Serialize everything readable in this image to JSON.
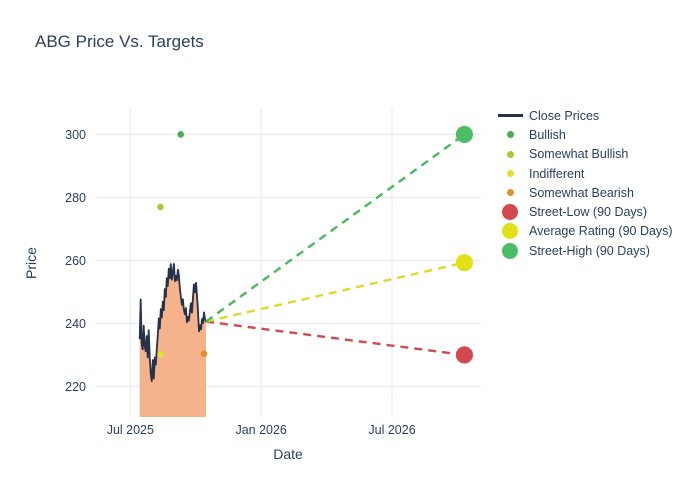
{
  "title": "ABG Price Vs. Targets",
  "colors": {
    "title_text": "#2a3f5f",
    "axis_text": "#2a3f5f",
    "gridline": "#e9eef6",
    "background": "#ffffff",
    "close_line": "#263247",
    "close_fill": "#f6b28b"
  },
  "legend": {
    "items": [
      {
        "label": "Close Prices",
        "marker": "line",
        "color": "#263247"
      },
      {
        "label": "Bullish",
        "marker": "dot-small",
        "color": "#4aad52"
      },
      {
        "label": "Somewhat Bullish",
        "marker": "dot-small",
        "color": "#a6c939"
      },
      {
        "label": "Indifferent",
        "marker": "dot-small",
        "color": "#e4df30"
      },
      {
        "label": "Somewhat Bearish",
        "marker": "dot-small",
        "color": "#df8f2d"
      },
      {
        "label": "Street-Low (90 Days)",
        "marker": "dot-large",
        "color": "#d4494f"
      },
      {
        "label": "Average Rating (90 Days)",
        "marker": "dot-large",
        "color": "#e2e118"
      },
      {
        "label": "Street-High (90 Days)",
        "marker": "dot-large",
        "color": "#4dbd65"
      }
    ]
  },
  "chart_data": {
    "type": "line",
    "title": "ABG Price Vs. Targets",
    "xlabel": "Date",
    "ylabel": "Price",
    "grid": true,
    "legend_position": "right",
    "x_tick_labels": [
      "Jul 2025",
      "Jan 2026",
      "Jul 2026"
    ],
    "x_tick_months": [
      0,
      6,
      12
    ],
    "y_ticks": [
      220,
      240,
      260,
      280,
      300
    ],
    "x_range_months": [
      -1.62,
      16.08
    ],
    "y_range": [
      210.3,
      308.4
    ],
    "series": {
      "close_prices": {
        "name": "Close Prices",
        "x_start_month": 0.43,
        "x_end_month": 3.47,
        "values": [
          235.0,
          247.6,
          233.4,
          231.8,
          239.3,
          232.8,
          231.2,
          236.0,
          229.2,
          237.9,
          228.8,
          223.9,
          221.7,
          228.4,
          222.5,
          229.2,
          226.9,
          231.9,
          236.4,
          241.6,
          238.4,
          244.6,
          241.9,
          246.9,
          244.2,
          250.9,
          248.4,
          254.4,
          251.9,
          257.4,
          254.4,
          258.8,
          253.9,
          256.4,
          258.9,
          253.4,
          255.1,
          253.7,
          257.1,
          255.2,
          250.9,
          248.4,
          245.9,
          247.7,
          244.3,
          242.9,
          244.9,
          240.4,
          242.1,
          240.9,
          243.9,
          246.4,
          243.4,
          247.9,
          252.4,
          249.9,
          252.9,
          248.9,
          243.9,
          237.5,
          239.4,
          238.1,
          241.4,
          240.1,
          243.5,
          241.3,
          240.6
        ]
      },
      "analyst_ratings": [
        {
          "name": "Bullish",
          "month": 2.31,
          "price": 300.0,
          "color": "#4aad52"
        },
        {
          "name": "Somewhat Bullish",
          "month": 1.38,
          "price": 277.0,
          "color": "#a6c939"
        },
        {
          "name": "Indifferent",
          "month": 1.39,
          "price": 230.2,
          "color": "#e4df30"
        },
        {
          "name": "Somewhat Bearish",
          "month": 3.38,
          "price": 230.4,
          "color": "#df8f2d"
        }
      ],
      "trend_origin": {
        "month": 3.47,
        "price": 240.6
      },
      "targets": [
        {
          "name": "Street-Low (90 Days)",
          "month": 15.32,
          "price": 230.0,
          "color": "#d4494f",
          "line_color": "#cc4c50"
        },
        {
          "name": "Average Rating (90 Days)",
          "month": 15.32,
          "price": 259.3,
          "color": "#e2e118",
          "line_color": "#ded82a"
        },
        {
          "name": "Street-High (90 Days)",
          "month": 15.32,
          "price": 300.0,
          "color": "#4dbd65",
          "line_color": "#4cb85c"
        }
      ]
    }
  }
}
